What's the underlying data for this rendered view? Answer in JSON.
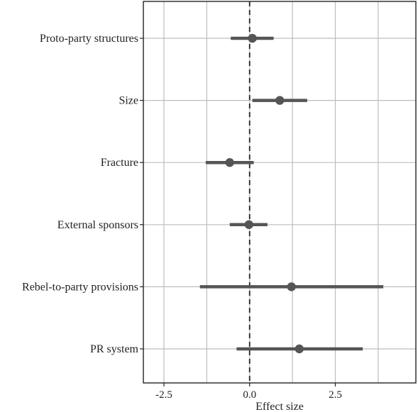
{
  "chart_data": {
    "type": "forest",
    "title": "",
    "xlabel": "Effect size",
    "ylabel": "",
    "xlim": [
      -3.1,
      4.85
    ],
    "xticks": [
      -2.5,
      0.0,
      2.5
    ],
    "xtick_labels": [
      "-2.5",
      "0.0",
      "2.5"
    ],
    "minor_gridlines": [
      -1.25,
      1.25,
      3.75
    ],
    "reference_line": 0,
    "grid": true,
    "colors": {
      "estimate": "#555555",
      "grid": "#bdbdbd",
      "reference": "#222222"
    },
    "categories": [
      "Proto-party structures",
      "Size",
      "Fracture",
      "External sponsors",
      "Rebel-to-party provisions",
      "PR system"
    ],
    "estimates": [
      0.08,
      0.88,
      -0.58,
      -0.02,
      1.22,
      1.45
    ],
    "ci_lower": [
      -0.55,
      0.08,
      -1.28,
      -0.58,
      -1.45,
      -0.38
    ],
    "ci_upper": [
      0.7,
      1.68,
      0.12,
      0.52,
      3.9,
      3.3
    ]
  }
}
